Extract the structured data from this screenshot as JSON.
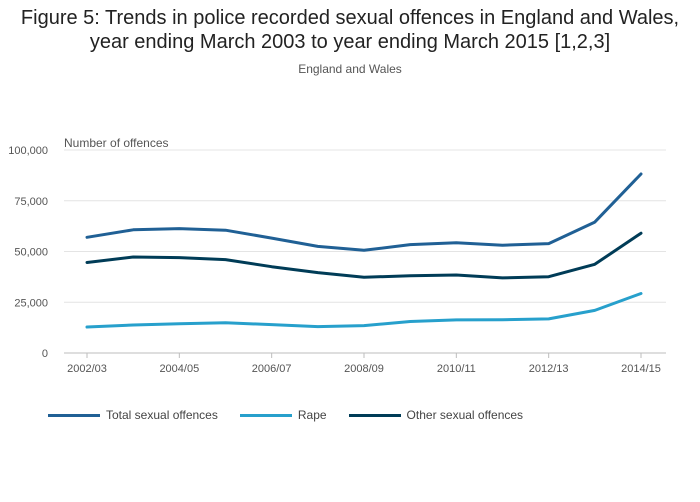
{
  "chart_data": {
    "type": "line",
    "title": "Figure 5: Trends in police recorded sexual offences in England and Wales, year ending March 2003 to year ending March 2015 [1,2,3]",
    "title_line1": "Figure 5: Trends in police recorded sexual offences in England and Wales,",
    "title_line2": "year ending March 2003 to year ending March 2015 [1,2,3]",
    "subtitle": "England and Wales",
    "ylabel": "Number of offences",
    "xlabel": "",
    "ylim": [
      0,
      100000
    ],
    "yticks": [
      0,
      25000,
      50000,
      75000,
      100000
    ],
    "ytick_labels": [
      "0",
      "25,000",
      "50,000",
      "75,000",
      "100,000"
    ],
    "x": [
      "2002/03",
      "2003/04",
      "2004/05",
      "2005/06",
      "2006/07",
      "2007/08",
      "2008/09",
      "2009/10",
      "2010/11",
      "2011/12",
      "2012/13",
      "2013/14",
      "2014/15"
    ],
    "xtick_labels": [
      "2002/03",
      "2004/05",
      "2006/07",
      "2008/09",
      "2010/11",
      "2012/13",
      "2014/15"
    ],
    "grid": true,
    "legend_position": "bottom-left",
    "series": [
      {
        "name": "Total sexual offences",
        "color": "#206095",
        "values": [
          57000,
          60700,
          61300,
          60500,
          56600,
          52500,
          50600,
          53400,
          54300,
          53100,
          53900,
          64500,
          88200
        ]
      },
      {
        "name": "Rape",
        "color": "#27a0cc",
        "values": [
          12800,
          13800,
          14400,
          14900,
          14000,
          13000,
          13500,
          15500,
          16300,
          16400,
          16800,
          21000,
          29300
        ]
      },
      {
        "name": "Other sexual offences",
        "color": "#003c57",
        "values": [
          44600,
          47300,
          47000,
          46000,
          42500,
          39600,
          37300,
          38100,
          38400,
          37000,
          37600,
          43700,
          59000
        ]
      }
    ]
  }
}
